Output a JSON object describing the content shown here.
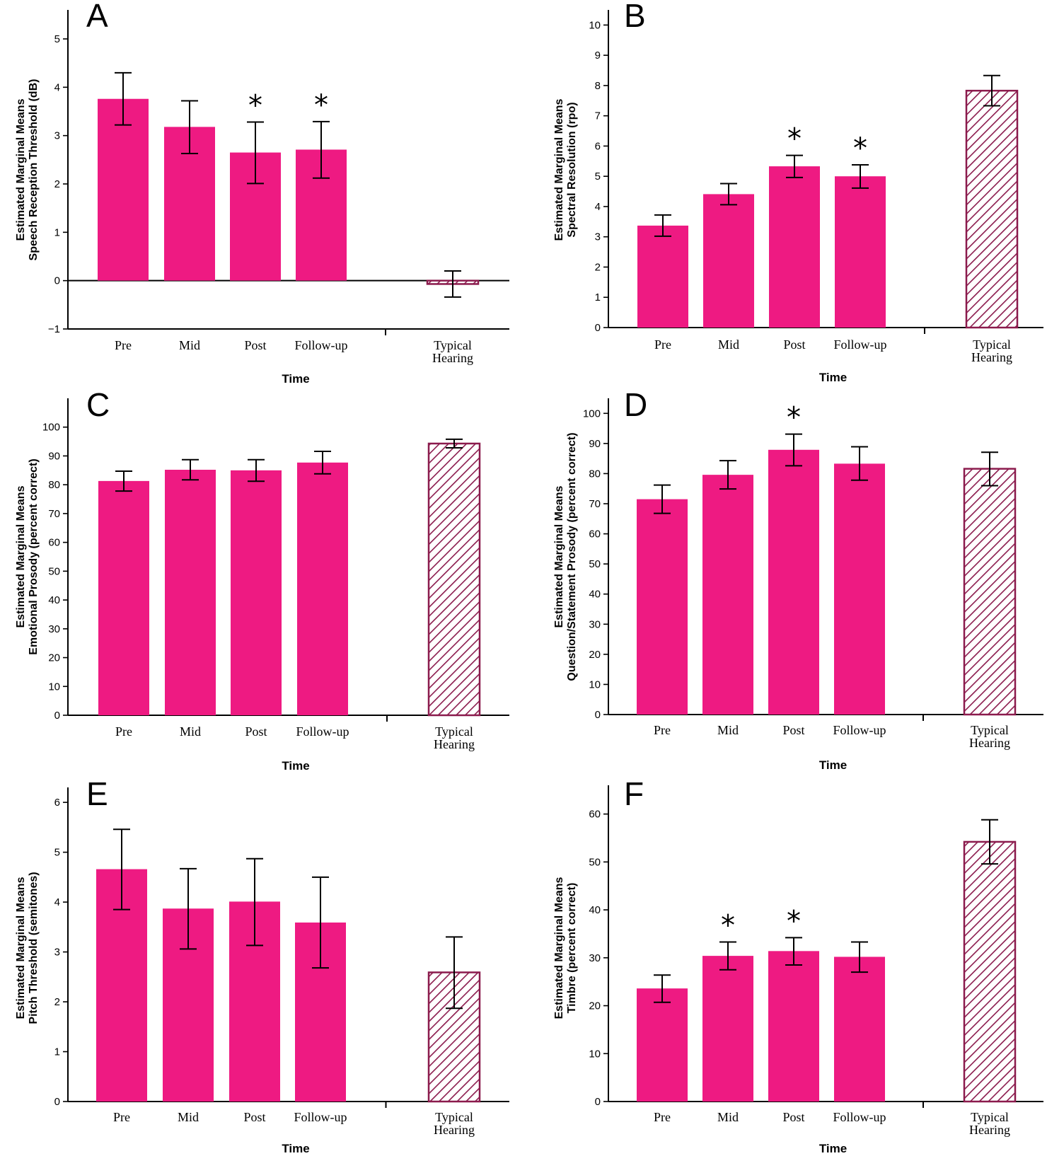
{
  "colors": {
    "bar": "#ee1a82",
    "hatch": "#8b1b4d",
    "axis": "#000000"
  },
  "chart_data": [
    {
      "panel": "A",
      "type": "bar",
      "categories": [
        "Pre",
        "Mid",
        "Post",
        "Follow-up",
        "Typical Hearing"
      ],
      "ylabel": [
        "Estimated Marginal Means",
        "Speech Reception Threshold (dB)"
      ],
      "xlabel": "Time",
      "ylim": [
        -1,
        5.6
      ],
      "ticks": [
        -1,
        0,
        1,
        2,
        3,
        4,
        5
      ],
      "tick_labels": [
        "−1",
        "0",
        "1",
        "2",
        "3",
        "4",
        "5"
      ],
      "values": [
        3.76,
        3.18,
        2.65,
        2.71,
        -0.07
      ],
      "err_low": [
        3.22,
        2.63,
        2.01,
        2.12,
        -0.34
      ],
      "err_high": [
        4.3,
        3.72,
        3.28,
        3.29,
        0.2
      ],
      "significant": [
        false,
        false,
        true,
        true,
        false
      ],
      "hatched": [
        false,
        false,
        false,
        false,
        true
      ]
    },
    {
      "panel": "B",
      "type": "bar",
      "categories": [
        "Pre",
        "Mid",
        "Post",
        "Follow-up",
        "Typical Hearing"
      ],
      "ylabel": [
        "Estimated Marginal Means",
        "Spectral Resolution (rpo)"
      ],
      "xlabel": "Time",
      "ylim": [
        0,
        10.5
      ],
      "ticks": [
        0,
        1,
        2,
        3,
        4,
        5,
        6,
        7,
        8,
        9,
        10
      ],
      "tick_labels": [
        "0",
        "1",
        "2",
        "3",
        "4",
        "5",
        "6",
        "7",
        "8",
        "9",
        "10"
      ],
      "values": [
        3.37,
        4.41,
        5.33,
        5.0,
        7.83
      ],
      "err_low": [
        3.02,
        4.06,
        4.96,
        4.61,
        7.33
      ],
      "err_high": [
        3.72,
        4.76,
        5.69,
        5.38,
        8.33
      ],
      "significant": [
        false,
        false,
        true,
        true,
        false
      ],
      "hatched": [
        false,
        false,
        false,
        false,
        true
      ]
    },
    {
      "panel": "C",
      "type": "bar",
      "categories": [
        "Pre",
        "Mid",
        "Post",
        "Follow-up",
        "Typical Hearing"
      ],
      "ylabel": [
        "Estimated Marginal Means",
        "Emotional Prosody (percent correct)"
      ],
      "xlabel": "Time",
      "ylim": [
        0,
        110
      ],
      "ticks": [
        0,
        10,
        20,
        30,
        40,
        50,
        60,
        70,
        80,
        90,
        100
      ],
      "tick_labels": [
        "0",
        "10",
        "20",
        "30",
        "40",
        "50",
        "60",
        "70",
        "80",
        "90",
        "100"
      ],
      "values": [
        81.3,
        85.2,
        85.0,
        87.7,
        94.3
      ],
      "err_low": [
        77.8,
        81.7,
        81.2,
        83.8,
        92.8
      ],
      "err_high": [
        84.7,
        88.7,
        88.7,
        91.6,
        95.8
      ],
      "significant": [
        false,
        false,
        false,
        false,
        false
      ],
      "hatched": [
        false,
        false,
        false,
        false,
        true
      ]
    },
    {
      "panel": "D",
      "type": "bar",
      "categories": [
        "Pre",
        "Mid",
        "Post",
        "Follow-up",
        "Typical Hearing"
      ],
      "ylabel": [
        "Estimated Marginal Means",
        "Question/Statement Prosody (percent correct)"
      ],
      "xlabel": "Time",
      "ylim": [
        0,
        105
      ],
      "ticks": [
        0,
        10,
        20,
        30,
        40,
        50,
        60,
        70,
        80,
        90,
        100
      ],
      "tick_labels": [
        "0",
        "10",
        "20",
        "30",
        "40",
        "50",
        "60",
        "70",
        "80",
        "90",
        "100"
      ],
      "values": [
        71.5,
        79.6,
        87.9,
        83.3,
        81.6
      ],
      "err_low": [
        66.8,
        74.9,
        82.6,
        77.8,
        76.0
      ],
      "err_high": [
        76.2,
        84.3,
        93.1,
        88.9,
        87.1
      ],
      "significant": [
        false,
        false,
        true,
        false,
        false
      ],
      "hatched": [
        false,
        false,
        false,
        false,
        true
      ]
    },
    {
      "panel": "E",
      "type": "bar",
      "categories": [
        "Pre",
        "Mid",
        "Post",
        "Follow-up",
        "Typical Hearing"
      ],
      "ylabel": [
        "Estimated Marginal Means",
        "Pitch Threshold (semitones)"
      ],
      "xlabel": "Time",
      "ylim": [
        0,
        6.3
      ],
      "ticks": [
        0,
        1,
        2,
        3,
        4,
        5,
        6
      ],
      "tick_labels": [
        "0",
        "1",
        "2",
        "3",
        "4",
        "5",
        "6"
      ],
      "values": [
        4.66,
        3.87,
        4.01,
        3.59,
        2.59
      ],
      "err_low": [
        3.85,
        3.06,
        3.13,
        2.68,
        1.87
      ],
      "err_high": [
        5.46,
        4.67,
        4.87,
        4.5,
        3.3
      ],
      "significant": [
        false,
        false,
        false,
        false,
        false
      ],
      "hatched": [
        false,
        false,
        false,
        false,
        true
      ]
    },
    {
      "panel": "F",
      "type": "bar",
      "categories": [
        "Pre",
        "Mid",
        "Post",
        "Follow-up",
        "Typical Hearing"
      ],
      "ylabel": [
        "Estimated Marginal Means",
        "Timbre (percent correct)"
      ],
      "xlabel": "Time",
      "ylim": [
        0,
        66
      ],
      "ticks": [
        0,
        10,
        20,
        30,
        40,
        50,
        60
      ],
      "tick_labels": [
        "0",
        "10",
        "20",
        "30",
        "40",
        "50",
        "60"
      ],
      "values": [
        23.6,
        30.4,
        31.4,
        30.2,
        54.2
      ],
      "err_low": [
        20.7,
        27.5,
        28.5,
        27.0,
        49.6
      ],
      "err_high": [
        26.4,
        33.3,
        34.2,
        33.3,
        58.8
      ],
      "significant": [
        false,
        true,
        true,
        false,
        false
      ],
      "hatched": [
        false,
        false,
        false,
        false,
        true
      ]
    }
  ]
}
